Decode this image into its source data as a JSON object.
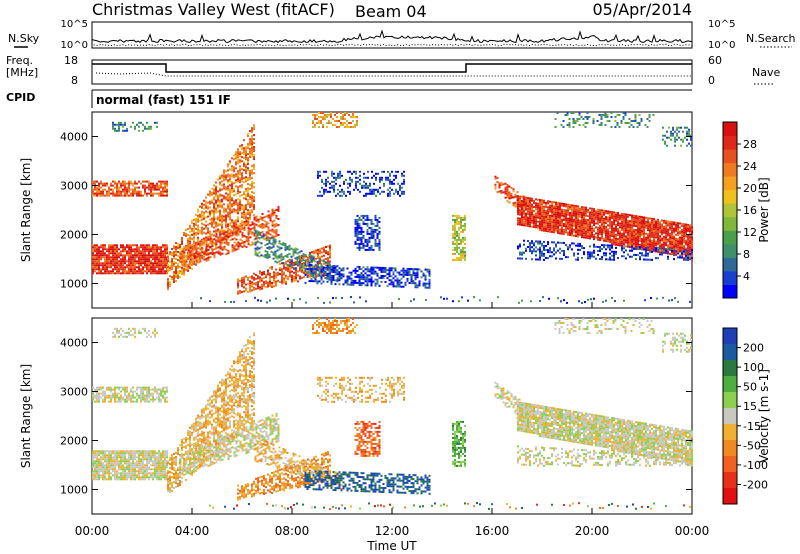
{
  "header": {
    "station": "Christmas Valley West (fitACF)",
    "beam": "Beam 04",
    "date": "05/Apr/2014"
  },
  "noise_panel": {
    "left_label": "N.Sky",
    "right_label": "N.Search",
    "ticks": [
      "10^5",
      "10^0"
    ]
  },
  "freq_panel": {
    "left_label_1": "Freq.",
    "left_label_2": "[MHz]",
    "left_ticks": [
      "18",
      "8"
    ],
    "right_label": "Nave",
    "right_ticks": [
      "60",
      "0"
    ]
  },
  "cpid_panel": {
    "label": "CPID",
    "mode": "normal (fast) 151 IF"
  },
  "chart_data": [
    {
      "type": "heatmap",
      "name": "power",
      "ylabel": "Slant Range [km]",
      "xlabel": "Time UT",
      "xlim": [
        0,
        24
      ],
      "ylim": [
        500,
        4500
      ],
      "yticks": [
        "1000",
        "2000",
        "3000",
        "4000"
      ],
      "colorbar": {
        "label": "Power [dB]",
        "ticks": [
          "4",
          "8",
          "12",
          "16",
          "20",
          "24",
          "28"
        ],
        "colors": [
          "#0000ff",
          "#1a3fd0",
          "#2d6a9a",
          "#3f8f6a",
          "#4aa04a",
          "#7fb83a",
          "#b0c43a",
          "#f0c020",
          "#f5a020",
          "#f07a20",
          "#e85020",
          "#e02818",
          "#d81010"
        ]
      }
    },
    {
      "type": "heatmap",
      "name": "velocity",
      "ylabel": "Slant Range [km]",
      "xlabel": "Time UT",
      "xlim": [
        0,
        24
      ],
      "ylim": [
        500,
        4500
      ],
      "yticks": [
        "1000",
        "2000",
        "3000",
        "4000"
      ],
      "colorbar": {
        "label": "Velocity [m s-1]",
        "ticks": [
          "200",
          "100",
          "50",
          "15",
          "-15",
          "-50",
          "-100",
          "-200"
        ],
        "colors": [
          "#1f3fb8",
          "#1a5aa0",
          "#2a7a40",
          "#4cae3c",
          "#8cd050",
          "#c8c8c0",
          "#f0b030",
          "#f08a20",
          "#f06020",
          "#e83018",
          "#e01010"
        ]
      }
    }
  ],
  "x_axis": {
    "ticks": [
      "00:00",
      "04:00",
      "08:00",
      "12:00",
      "16:00",
      "20:00",
      "00:00"
    ],
    "label": "Time UT"
  }
}
